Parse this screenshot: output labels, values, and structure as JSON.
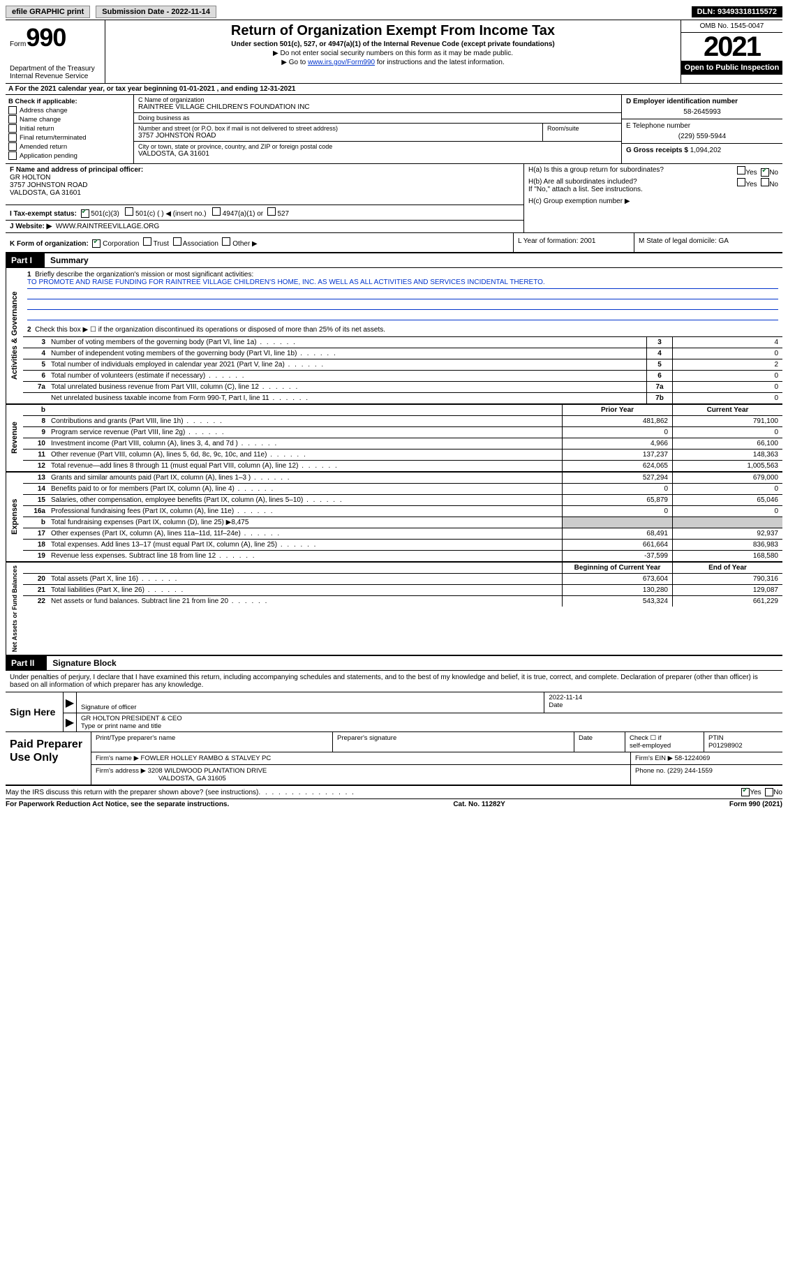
{
  "topbar": {
    "efile": "efile GRAPHIC print",
    "sub_label": "Submission Date - 2022-11-14",
    "dln": "DLN: 93493318115572"
  },
  "header": {
    "form_prefix": "Form",
    "form_no": "990",
    "title": "Return of Organization Exempt From Income Tax",
    "subtitle": "Under section 501(c), 527, or 4947(a)(1) of the Internal Revenue Code (except private foundations)",
    "note1": "▶ Do not enter social security numbers on this form as it may be made public.",
    "note2_pre": "▶ Go to ",
    "note2_link": "www.irs.gov/Form990",
    "note2_post": " for instructions and the latest information.",
    "dept": "Department of the Treasury",
    "irs": "Internal Revenue Service",
    "omb": "OMB No. 1545-0047",
    "year": "2021",
    "open": "Open to Public Inspection"
  },
  "rowA": "A For the 2021 calendar year, or tax year beginning 01-01-2021   , and ending 12-31-2021",
  "sectionB": {
    "label": "B Check if applicable:",
    "opts": [
      "Address change",
      "Name change",
      "Initial return",
      "Final return/terminated",
      "Amended return",
      "Application pending"
    ]
  },
  "sectionC": {
    "name_label": "C Name of organization",
    "name": "RAINTREE VILLAGE CHILDREN'S FOUNDATION INC",
    "dba_label": "Doing business as",
    "dba": "",
    "addr_label": "Number and street (or P.O. box if mail is not delivered to street address)",
    "addr": "3757 JOHNSTON ROAD",
    "room_label": "Room/suite",
    "city_label": "City or town, state or province, country, and ZIP or foreign postal code",
    "city": "VALDOSTA, GA  31601"
  },
  "sectionD": {
    "label": "D Employer identification number",
    "val": "58-2645993"
  },
  "sectionE": {
    "label": "E Telephone number",
    "val": "(229) 559-5944"
  },
  "sectionG": {
    "label": "G Gross receipts $",
    "val": "1,094,202"
  },
  "sectionF": {
    "label": "F Name and address of principal officer:",
    "name": "GR HOLTON",
    "addr": "3757 JOHNSTON ROAD",
    "city": "VALDOSTA, GA  31601"
  },
  "sectionH": {
    "a": "H(a)  Is this a group return for subordinates?",
    "b": "H(b)  Are all subordinates included?",
    "b_note": "If \"No,\" attach a list. See instructions.",
    "c": "H(c)  Group exemption number ▶"
  },
  "sectionI": {
    "label": "I   Tax-exempt status:",
    "opt1": "501(c)(3)",
    "opt2": "501(c) (  ) ◀ (insert no.)",
    "opt3": "4947(a)(1) or",
    "opt4": "527"
  },
  "sectionJ": {
    "label": "J   Website: ▶",
    "val": "WWW.RAINTREEVILLAGE.ORG"
  },
  "sectionK": {
    "label": "K Form of organization:",
    "opts": [
      "Corporation",
      "Trust",
      "Association",
      "Other ▶"
    ],
    "L": "L Year of formation: 2001",
    "M": "M State of legal domicile: GA"
  },
  "part1": {
    "label": "Part I",
    "title": "Summary"
  },
  "mission": {
    "label": "Briefly describe the organization's mission or most significant activities:",
    "text": "TO PROMOTE AND RAISE FUNDING FOR RAINTREE VILLAGE CHILDREN'S HOME, INC. AS WELL AS ALL ACTIVITIES AND SERVICES INCIDENTAL THERETO."
  },
  "line2": "Check this box ▶ ☐  if the organization discontinued its operations or disposed of more than 25% of its net assets.",
  "vtabs": {
    "ag": "Activities & Governance",
    "rev": "Revenue",
    "exp": "Expenses",
    "net": "Net Assets or Fund Balances"
  },
  "summary_simple": [
    {
      "n": "3",
      "d": "Number of voting members of the governing body (Part VI, line 1a)",
      "b": "3",
      "v": "4"
    },
    {
      "n": "4",
      "d": "Number of independent voting members of the governing body (Part VI, line 1b)",
      "b": "4",
      "v": "0"
    },
    {
      "n": "5",
      "d": "Total number of individuals employed in calendar year 2021 (Part V, line 2a)",
      "b": "5",
      "v": "2"
    },
    {
      "n": "6",
      "d": "Total number of volunteers (estimate if necessary)",
      "b": "6",
      "v": "0"
    },
    {
      "n": "7a",
      "d": "Total unrelated business revenue from Part VIII, column (C), line 12",
      "b": "7a",
      "v": "0"
    },
    {
      "n": "",
      "d": "Net unrelated business taxable income from Form 990-T, Part I, line 11",
      "b": "7b",
      "v": "0"
    }
  ],
  "cols": {
    "prior": "Prior Year",
    "current": "Current Year",
    "beg": "Beginning of Current Year",
    "end": "End of Year"
  },
  "revenue": [
    {
      "n": "8",
      "d": "Contributions and grants (Part VIII, line 1h)",
      "p": "481,862",
      "c": "791,100"
    },
    {
      "n": "9",
      "d": "Program service revenue (Part VIII, line 2g)",
      "p": "0",
      "c": "0"
    },
    {
      "n": "10",
      "d": "Investment income (Part VIII, column (A), lines 3, 4, and 7d )",
      "p": "4,966",
      "c": "66,100"
    },
    {
      "n": "11",
      "d": "Other revenue (Part VIII, column (A), lines 5, 6d, 8c, 9c, 10c, and 11e)",
      "p": "137,237",
      "c": "148,363"
    },
    {
      "n": "12",
      "d": "Total revenue—add lines 8 through 11 (must equal Part VIII, column (A), line 12)",
      "p": "624,065",
      "c": "1,005,563"
    }
  ],
  "expenses": [
    {
      "n": "13",
      "d": "Grants and similar amounts paid (Part IX, column (A), lines 1–3 )",
      "p": "527,294",
      "c": "679,000"
    },
    {
      "n": "14",
      "d": "Benefits paid to or for members (Part IX, column (A), line 4)",
      "p": "0",
      "c": "0"
    },
    {
      "n": "15",
      "d": "Salaries, other compensation, employee benefits (Part IX, column (A), lines 5–10)",
      "p": "65,879",
      "c": "65,046"
    },
    {
      "n": "16a",
      "d": "Professional fundraising fees (Part IX, column (A), line 11e)",
      "p": "0",
      "c": "0"
    },
    {
      "n": "b",
      "d": "Total fundraising expenses (Part IX, column (D), line 25) ▶8,475",
      "p": "",
      "c": "",
      "shade": true
    },
    {
      "n": "17",
      "d": "Other expenses (Part IX, column (A), lines 11a–11d, 11f–24e)",
      "p": "68,491",
      "c": "92,937"
    },
    {
      "n": "18",
      "d": "Total expenses. Add lines 13–17 (must equal Part IX, column (A), line 25)",
      "p": "661,664",
      "c": "836,983"
    },
    {
      "n": "19",
      "d": "Revenue less expenses. Subtract line 18 from line 12",
      "p": "-37,599",
      "c": "168,580"
    }
  ],
  "netassets": [
    {
      "n": "20",
      "d": "Total assets (Part X, line 16)",
      "p": "673,604",
      "c": "790,316"
    },
    {
      "n": "21",
      "d": "Total liabilities (Part X, line 26)",
      "p": "130,280",
      "c": "129,087"
    },
    {
      "n": "22",
      "d": "Net assets or fund balances. Subtract line 21 from line 20",
      "p": "543,324",
      "c": "661,229"
    }
  ],
  "part2": {
    "label": "Part II",
    "title": "Signature Block"
  },
  "penalties": "Under penalties of perjury, I declare that I have examined this return, including accompanying schedules and statements, and to the best of my knowledge and belief, it is true, correct, and complete. Declaration of preparer (other than officer) is based on all information of which preparer has any knowledge.",
  "sign": {
    "label": "Sign Here",
    "sig_of_officer": "Signature of officer",
    "date": "2022-11-14",
    "date_label": "Date",
    "name": "GR HOLTON  PRESIDENT & CEO",
    "name_label": "Type or print name and title"
  },
  "paid": {
    "label": "Paid Preparer Use Only",
    "h1": "Print/Type preparer's name",
    "h2": "Preparer's signature",
    "h3": "Date",
    "h4_a": "Check ☐ if",
    "h4_b": "self-employed",
    "h5": "PTIN",
    "ptin": "P01298902",
    "firm_name_label": "Firm's name    ▶",
    "firm_name": "FOWLER HOLLEY RAMBO & STALVEY PC",
    "firm_ein_label": "Firm's EIN ▶",
    "firm_ein": "58-1224069",
    "firm_addr_label": "Firm's address ▶",
    "firm_addr1": "3208 WILDWOOD PLANTATION DRIVE",
    "firm_addr2": "VALDOSTA, GA  31605",
    "phone_label": "Phone no.",
    "phone": "(229) 244-1559"
  },
  "discuss": "May the IRS discuss this return with the preparer shown above? (see instructions)",
  "footer": {
    "left": "For Paperwork Reduction Act Notice, see the separate instructions.",
    "mid": "Cat. No. 11282Y",
    "right": "Form 990 (2021)"
  },
  "yesno": {
    "yes": "Yes",
    "no": "No"
  }
}
